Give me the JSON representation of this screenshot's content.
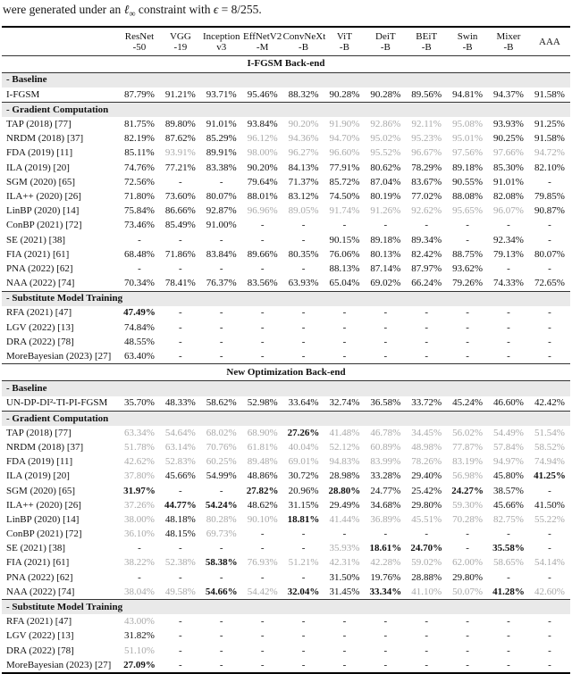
{
  "caption": {
    "lead": "were generated under an ",
    "ell": "ℓ",
    "inf": "∞",
    "mid": " constraint with ",
    "epsilon": "ϵ",
    "tail": " = 8/255."
  },
  "colors": {
    "text": "#111111",
    "muted_text": "#a9a9a9",
    "band_background": "#e9e9e9"
  },
  "table": {
    "columns": [
      {
        "line1": "ResNet",
        "line2": "-50"
      },
      {
        "line1": "VGG",
        "line2": "-19"
      },
      {
        "line1": "Inception",
        "line2": "v3"
      },
      {
        "line1": "EffNetV2",
        "line2": "-M"
      },
      {
        "line1": "ConvNeXt",
        "line2": "-B"
      },
      {
        "line1": "ViT",
        "line2": "-B"
      },
      {
        "line1": "DeiT",
        "line2": "-B"
      },
      {
        "line1": "BEiT",
        "line2": "-B"
      },
      {
        "line1": "Swin",
        "line2": "-B"
      },
      {
        "line1": "Mixer",
        "line2": "-B"
      },
      {
        "line1": "AAA",
        "line2": ""
      }
    ],
    "cell_style_legend": "plain = black, g| = gray (worse than baseline), b| = bold",
    "sections": [
      {
        "title": "I-FGSM Back-end",
        "groups": [
          {
            "label": "- Baseline",
            "rows": [
              {
                "method": "I-FGSM",
                "cells": [
                  "87.79%",
                  "91.21%",
                  "93.71%",
                  "95.46%",
                  "88.32%",
                  "90.28%",
                  "90.28%",
                  "89.56%",
                  "94.81%",
                  "94.37%",
                  "91.58%"
                ]
              }
            ]
          },
          {
            "label": "- Gradient Computation",
            "rows": [
              {
                "method": "TAP (2018) [77]",
                "cells": [
                  "81.75%",
                  "89.80%",
                  "91.01%",
                  "93.84%",
                  "g|90.20%",
                  "g|91.90%",
                  "g|92.86%",
                  "g|92.11%",
                  "g|95.08%",
                  "93.93%",
                  "91.25%"
                ]
              },
              {
                "method": "NRDM (2018) [37]",
                "cells": [
                  "82.19%",
                  "87.62%",
                  "85.29%",
                  "g|96.12%",
                  "g|94.36%",
                  "g|94.70%",
                  "g|95.02%",
                  "g|95.23%",
                  "g|95.01%",
                  "90.25%",
                  "91.58%"
                ]
              },
              {
                "method": "FDA (2019) [11]",
                "cells": [
                  "85.11%",
                  "g|93.91%",
                  "89.91%",
                  "g|98.00%",
                  "g|96.27%",
                  "g|96.60%",
                  "g|95.52%",
                  "g|96.67%",
                  "g|97.56%",
                  "g|97.66%",
                  "g|94.72%"
                ]
              },
              {
                "method": "ILA (2019) [20]",
                "cells": [
                  "74.76%",
                  "77.21%",
                  "83.38%",
                  "90.20%",
                  "84.13%",
                  "77.91%",
                  "80.62%",
                  "78.29%",
                  "89.18%",
                  "85.30%",
                  "82.10%"
                ]
              },
              {
                "method": "SGM (2020) [65]",
                "cells": [
                  "72.56%",
                  "-",
                  "-",
                  "79.64%",
                  "71.37%",
                  "85.72%",
                  "87.04%",
                  "83.67%",
                  "90.55%",
                  "91.01%",
                  "-"
                ]
              },
              {
                "method": "ILA++ (2020) [26]",
                "cells": [
                  "71.80%",
                  "73.60%",
                  "80.07%",
                  "88.01%",
                  "83.12%",
                  "74.50%",
                  "80.19%",
                  "77.02%",
                  "88.08%",
                  "82.08%",
                  "79.85%"
                ]
              },
              {
                "method": "LinBP (2020) [14]",
                "cells": [
                  "75.84%",
                  "86.66%",
                  "92.87%",
                  "g|96.96%",
                  "g|89.05%",
                  "g|91.74%",
                  "g|91.26%",
                  "g|92.62%",
                  "g|95.65%",
                  "g|96.07%",
                  "90.87%"
                ]
              },
              {
                "method": "ConBP (2021) [72]",
                "cells": [
                  "73.46%",
                  "85.49%",
                  "91.00%",
                  "-",
                  "-",
                  "-",
                  "-",
                  "-",
                  "-",
                  "-",
                  "-"
                ]
              },
              {
                "method": "SE (2021) [38]",
                "cells": [
                  "-",
                  "-",
                  "-",
                  "-",
                  "-",
                  "90.15%",
                  "89.18%",
                  "89.34%",
                  "-",
                  "92.34%",
                  "-"
                ]
              },
              {
                "method": "FIA (2021) [61]",
                "cells": [
                  "68.48%",
                  "71.86%",
                  "83.84%",
                  "89.66%",
                  "80.35%",
                  "76.06%",
                  "80.13%",
                  "82.42%",
                  "88.75%",
                  "79.13%",
                  "80.07%"
                ]
              },
              {
                "method": "PNA (2022) [62]",
                "cells": [
                  "-",
                  "-",
                  "-",
                  "-",
                  "-",
                  "88.13%",
                  "87.14%",
                  "87.97%",
                  "93.62%",
                  "-",
                  "-"
                ]
              },
              {
                "method": "NAA (2022) [74]",
                "cells": [
                  "70.34%",
                  "78.41%",
                  "76.37%",
                  "83.56%",
                  "63.93%",
                  "65.04%",
                  "69.02%",
                  "66.24%",
                  "79.26%",
                  "74.33%",
                  "72.65%"
                ]
              }
            ]
          },
          {
            "label": "- Substitute Model Training",
            "rows": [
              {
                "method": "RFA (2021) [47]",
                "cells": [
                  "b|47.49%",
                  "-",
                  "-",
                  "-",
                  "-",
                  "-",
                  "-",
                  "-",
                  "-",
                  "-",
                  "-"
                ]
              },
              {
                "method": "LGV (2022) [13]",
                "cells": [
                  "74.84%",
                  "-",
                  "-",
                  "-",
                  "-",
                  "-",
                  "-",
                  "-",
                  "-",
                  "-",
                  "-"
                ]
              },
              {
                "method": "DRA (2022) [78]",
                "cells": [
                  "48.55%",
                  "-",
                  "-",
                  "-",
                  "-",
                  "-",
                  "-",
                  "-",
                  "-",
                  "-",
                  "-"
                ]
              },
              {
                "method": "MoreBayesian (2023) [27]",
                "cells": [
                  "63.40%",
                  "-",
                  "-",
                  "-",
                  "-",
                  "-",
                  "-",
                  "-",
                  "-",
                  "-",
                  "-"
                ]
              }
            ]
          }
        ]
      },
      {
        "title": "New Optimization Back-end",
        "groups": [
          {
            "label": "- Baseline",
            "rows": [
              {
                "method": "UN-DP-DI²-TI-PI-FGSM",
                "cells": [
                  "35.70%",
                  "48.33%",
                  "58.62%",
                  "52.98%",
                  "33.64%",
                  "32.74%",
                  "36.58%",
                  "33.72%",
                  "45.24%",
                  "46.60%",
                  "42.42%"
                ]
              }
            ]
          },
          {
            "label": "- Gradient Computation",
            "rows": [
              {
                "method": "TAP (2018) [77]",
                "cells": [
                  "g|63.34%",
                  "g|54.64%",
                  "g|68.02%",
                  "g|68.90%",
                  "b|27.26%",
                  "g|41.48%",
                  "g|46.78%",
                  "g|34.45%",
                  "g|56.02%",
                  "g|54.49%",
                  "g|51.54%"
                ]
              },
              {
                "method": "NRDM (2018) [37]",
                "cells": [
                  "g|51.78%",
                  "g|63.14%",
                  "g|70.76%",
                  "g|61.81%",
                  "g|40.04%",
                  "g|52.12%",
                  "g|60.89%",
                  "g|48.98%",
                  "g|77.87%",
                  "g|57.84%",
                  "g|58.52%"
                ]
              },
              {
                "method": "FDA (2019) [11]",
                "cells": [
                  "g|42.62%",
                  "g|52.83%",
                  "g|60.25%",
                  "g|89.48%",
                  "g|69.01%",
                  "g|94.83%",
                  "g|83.99%",
                  "g|78.26%",
                  "g|83.19%",
                  "g|94.97%",
                  "g|74.94%"
                ]
              },
              {
                "method": "ILA (2019) [20]",
                "cells": [
                  "g|37.80%",
                  "45.66%",
                  "54.99%",
                  "48.86%",
                  "30.72%",
                  "28.98%",
                  "33.28%",
                  "29.40%",
                  "g|56.98%",
                  "45.80%",
                  "b|41.25%"
                ]
              },
              {
                "method": "SGM (2020) [65]",
                "cells": [
                  "b|31.97%",
                  "-",
                  "-",
                  "b|27.82%",
                  "20.96%",
                  "b|28.80%",
                  "24.77%",
                  "25.42%",
                  "b|24.27%",
                  "38.57%",
                  "-"
                ]
              },
              {
                "method": "ILA++ (2020) [26]",
                "cells": [
                  "g|37.26%",
                  "b|44.77%",
                  "b|54.24%",
                  "48.62%",
                  "31.15%",
                  "29.49%",
                  "34.68%",
                  "29.80%",
                  "g|59.30%",
                  "45.66%",
                  "41.50%"
                ]
              },
              {
                "method": "LinBP (2020) [14]",
                "cells": [
                  "g|38.00%",
                  "48.18%",
                  "g|80.28%",
                  "g|90.10%",
                  "b|18.81%",
                  "g|41.44%",
                  "g|36.89%",
                  "g|45.51%",
                  "g|70.28%",
                  "g|82.75%",
                  "g|55.22%"
                ]
              },
              {
                "method": "ConBP (2021) [72]",
                "cells": [
                  "g|36.10%",
                  "48.15%",
                  "g|69.73%",
                  "-",
                  "-",
                  "-",
                  "-",
                  "-",
                  "-",
                  "-",
                  "-"
                ]
              },
              {
                "method": "SE (2021) [38]",
                "cells": [
                  "-",
                  "-",
                  "-",
                  "-",
                  "-",
                  "g|35.93%",
                  "b|18.61%",
                  "b|24.70%",
                  "-",
                  "b|35.58%",
                  "-"
                ]
              },
              {
                "method": "FIA (2021) [61]",
                "cells": [
                  "g|38.22%",
                  "g|52.38%",
                  "b|58.38%",
                  "g|76.93%",
                  "g|51.21%",
                  "g|42.31%",
                  "g|42.28%",
                  "g|59.02%",
                  "g|62.00%",
                  "g|58.65%",
                  "g|54.14%"
                ]
              },
              {
                "method": "PNA (2022) [62]",
                "cells": [
                  "-",
                  "-",
                  "-",
                  "-",
                  "-",
                  "31.50%",
                  "19.76%",
                  "28.88%",
                  "29.80%",
                  "-",
                  "-"
                ]
              },
              {
                "method": "NAA (2022) [74]",
                "cells": [
                  "g|38.04%",
                  "g|49.58%",
                  "b|54.66%",
                  "g|54.42%",
                  "b|32.04%",
                  "31.45%",
                  "b|33.34%",
                  "g|41.10%",
                  "g|50.07%",
                  "b|41.28%",
                  "g|42.60%"
                ]
              }
            ]
          },
          {
            "label": "- Substitute Model Training",
            "rows": [
              {
                "method": "RFA (2021) [47]",
                "cells": [
                  "g|43.00%",
                  "-",
                  "-",
                  "-",
                  "-",
                  "-",
                  "-",
                  "-",
                  "-",
                  "-",
                  "-"
                ]
              },
              {
                "method": "LGV (2022) [13]",
                "cells": [
                  "31.82%",
                  "-",
                  "-",
                  "-",
                  "-",
                  "-",
                  "-",
                  "-",
                  "-",
                  "-",
                  "-"
                ]
              },
              {
                "method": "DRA (2022) [78]",
                "cells": [
                  "g|51.10%",
                  "-",
                  "-",
                  "-",
                  "-",
                  "-",
                  "-",
                  "-",
                  "-",
                  "-",
                  "-"
                ]
              },
              {
                "method": "MoreBayesian (2023) [27]",
                "cells": [
                  "b|27.09%",
                  "-",
                  "-",
                  "-",
                  "-",
                  "-",
                  "-",
                  "-",
                  "-",
                  "-",
                  "-"
                ]
              }
            ]
          }
        ]
      }
    ]
  }
}
